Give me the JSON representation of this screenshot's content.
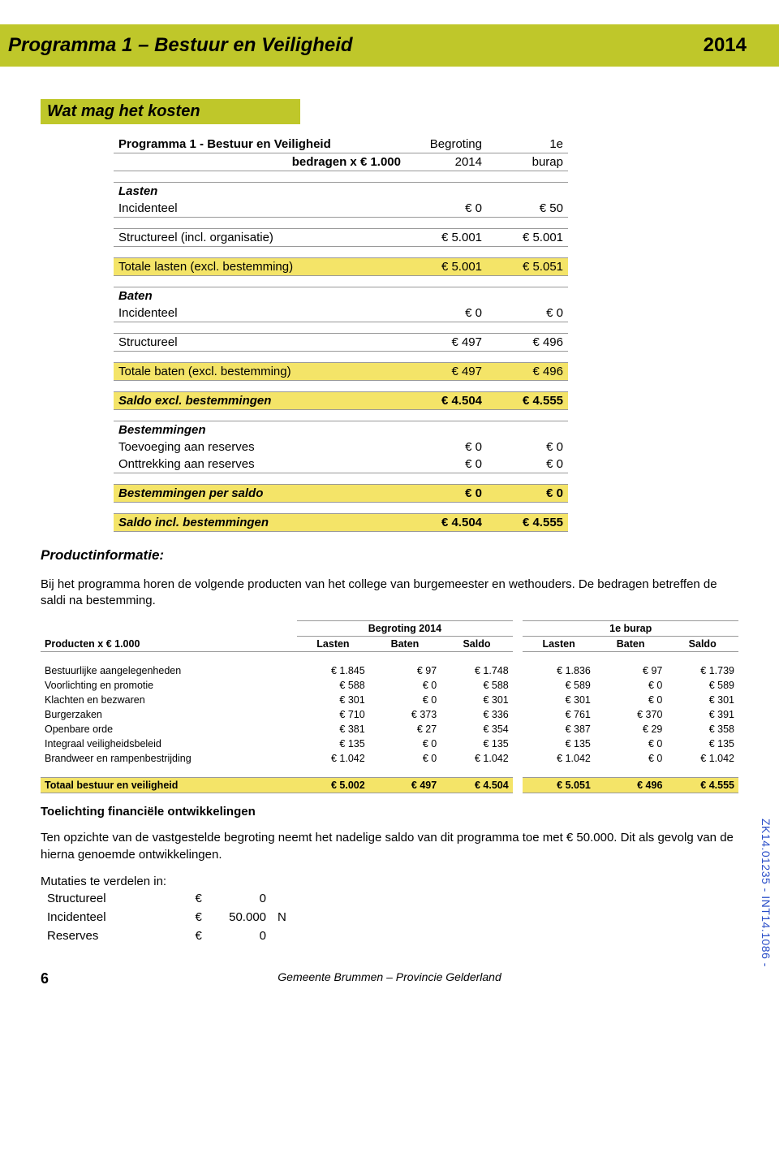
{
  "header": {
    "title": "Programma 1 – Bestuur en Veiligheid",
    "year": "2014"
  },
  "section_title": "Wat mag het kosten",
  "fin": {
    "table_title": "Programma 1 - Bestuur en Veiligheid",
    "unit_label": "bedragen x € 1.000",
    "col1_a": "Begroting",
    "col1_b": "2014",
    "col2_a": "1e",
    "col2_b": "burap",
    "rows": {
      "lasten_hdr": "Lasten",
      "incidenteel": "Incidenteel",
      "incidenteel_v1": "€ 0",
      "incidenteel_v2": "€ 50",
      "structureel_org": "Structureel (incl. organisatie)",
      "structureel_org_v1": "€ 5.001",
      "structureel_org_v2": "€ 5.001",
      "tot_lasten": "Totale lasten (excl. bestemming)",
      "tot_lasten_v1": "€ 5.001",
      "tot_lasten_v2": "€ 5.051",
      "baten_hdr": "Baten",
      "b_incidenteel": "Incidenteel",
      "b_incidenteel_v1": "€ 0",
      "b_incidenteel_v2": "€ 0",
      "b_structureel": "Structureel",
      "b_structureel_v1": "€ 497",
      "b_structureel_v2": "€ 496",
      "tot_baten": "Totale baten (excl. bestemming)",
      "tot_baten_v1": "€ 497",
      "tot_baten_v2": "€ 496",
      "saldo_excl": "Saldo excl. bestemmingen",
      "saldo_excl_v1": "€ 4.504",
      "saldo_excl_v2": "€ 4.555",
      "best_hdr": "Bestemmingen",
      "toev": "Toevoeging aan reserves",
      "toev_v1": "€ 0",
      "toev_v2": "€ 0",
      "ont": "Onttrekking aan reserves",
      "ont_v1": "€ 0",
      "ont_v2": "€ 0",
      "best_saldo": "Bestemmingen per saldo",
      "best_saldo_v1": "€ 0",
      "best_saldo_v2": "€ 0",
      "saldo_incl": "Saldo incl. bestemmingen",
      "saldo_incl_v1": "€ 4.504",
      "saldo_incl_v2": "€ 4.555"
    }
  },
  "prodinfo_h": "Productinformatie:",
  "prodinfo_p": "Bij het programma horen de volgende producten van het college van burgemeester en wethouders. De bedragen betreffen de saldi na bestemming.",
  "prod": {
    "group1": "Begroting 2014",
    "group2": "1e burap",
    "rowlabel": "Producten x € 1.000",
    "c_lasten": "Lasten",
    "c_baten": "Baten",
    "c_saldo": "Saldo",
    "rows": [
      {
        "l": "Bestuurlijke aangelegenheden",
        "a": "€ 1.845",
        "b": "€ 97",
        "c": "€ 1.748",
        "d": "€ 1.836",
        "e": "€ 97",
        "f": "€ 1.739"
      },
      {
        "l": "Voorlichting en promotie",
        "a": "€ 588",
        "b": "€ 0",
        "c": "€ 588",
        "d": "€ 589",
        "e": "€ 0",
        "f": "€ 589"
      },
      {
        "l": "Klachten en bezwaren",
        "a": "€ 301",
        "b": "€ 0",
        "c": "€ 301",
        "d": "€ 301",
        "e": "€ 0",
        "f": "€ 301"
      },
      {
        "l": "Burgerzaken",
        "a": "€ 710",
        "b": "€ 373",
        "c": "€ 336",
        "d": "€ 761",
        "e": "€ 370",
        "f": "€ 391"
      },
      {
        "l": "Openbare orde",
        "a": "€ 381",
        "b": "€ 27",
        "c": "€ 354",
        "d": "€ 387",
        "e": "€ 29",
        "f": "€ 358"
      },
      {
        "l": "Integraal veiligheidsbeleid",
        "a": "€ 135",
        "b": "€ 0",
        "c": "€ 135",
        "d": "€ 135",
        "e": "€ 0",
        "f": "€ 135"
      },
      {
        "l": "Brandweer en rampenbestrijding",
        "a": "€ 1.042",
        "b": "€ 0",
        "c": "€ 1.042",
        "d": "€ 1.042",
        "e": "€ 0",
        "f": "€ 1.042"
      }
    ],
    "total_l": "Totaal bestuur en veiligheid",
    "total": {
      "a": "€ 5.002",
      "b": "€ 497",
      "c": "€ 4.504",
      "d": "€ 5.051",
      "e": "€ 496",
      "f": "€ 4.555"
    }
  },
  "toel_h": "Toelichting financiële ontwikkelingen",
  "toel_p": "Ten opzichte van de vastgestelde begroting neemt het nadelige saldo van dit programma toe met € 50.000. Dit als gevolg van de hierna genoemde ontwikkelingen.",
  "mut_h": "Mutaties te verdelen in:",
  "mut": [
    {
      "l": "Structureel",
      "v": "€                 0",
      "s": ""
    },
    {
      "l": "Incidenteel",
      "v": "€        50.000",
      "s": "N"
    },
    {
      "l": "Reserves",
      "v": "€                 0",
      "s": ""
    }
  ],
  "footer": {
    "page": "6",
    "text": "Gemeente Brummen – Provincie Gelderland"
  },
  "side_ref": "ZK14.01235 - INT14.1086 -"
}
